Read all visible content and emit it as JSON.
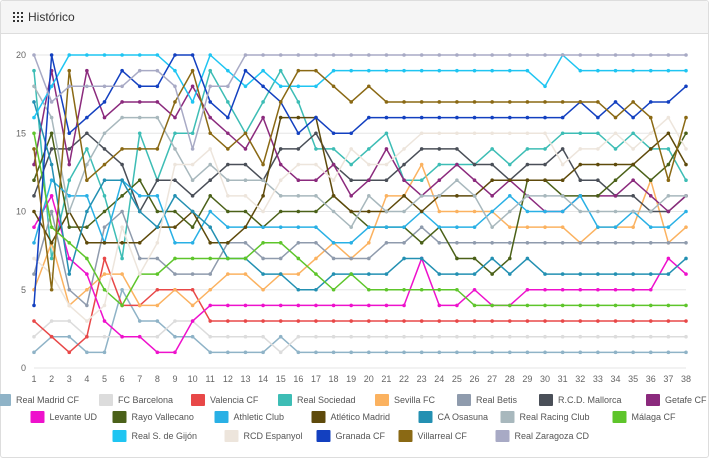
{
  "panel": {
    "title": "Histórico",
    "icon": "grid-icon"
  },
  "chart_data": {
    "type": "line",
    "xlabel": "",
    "ylabel": "",
    "x": [
      1,
      2,
      3,
      4,
      5,
      6,
      7,
      8,
      9,
      10,
      11,
      12,
      13,
      14,
      15,
      16,
      17,
      18,
      19,
      20,
      21,
      22,
      23,
      24,
      25,
      26,
      27,
      28,
      29,
      30,
      31,
      32,
      33,
      34,
      35,
      36,
      37,
      38
    ],
    "ylim": [
      0,
      20
    ],
    "yticks": [
      0,
      5,
      10,
      15,
      20
    ],
    "grid": true,
    "legend_position": "bottom",
    "series": [
      {
        "name": "Real Madrid CF",
        "color": "#8fb3c7",
        "values": [
          1,
          2,
          2,
          1,
          1,
          5,
          3,
          3,
          2,
          2,
          1,
          1,
          1,
          1,
          2,
          1,
          1,
          1,
          1,
          1,
          1,
          1,
          1,
          1,
          1,
          1,
          1,
          1,
          1,
          1,
          1,
          1,
          1,
          1,
          1,
          1,
          1,
          1
        ]
      },
      {
        "name": "FC Barcelona",
        "color": "#dcdcdc",
        "values": [
          2,
          3,
          3,
          2,
          2,
          2,
          2,
          2,
          3,
          3,
          2,
          2,
          2,
          2,
          1,
          2,
          2,
          2,
          2,
          2,
          2,
          2,
          2,
          2,
          2,
          2,
          2,
          2,
          2,
          2,
          2,
          2,
          2,
          2,
          2,
          2,
          2,
          2
        ]
      },
      {
        "name": "Valencia CF",
        "color": "#e84848",
        "values": [
          3,
          2,
          1,
          2,
          7,
          4,
          4,
          5,
          5,
          5,
          3,
          3,
          3,
          3,
          3,
          3,
          3,
          3,
          3,
          3,
          3,
          3,
          3,
          3,
          3,
          3,
          3,
          3,
          3,
          3,
          3,
          3,
          3,
          3,
          3,
          3,
          3,
          3
        ]
      },
      {
        "name": "Real Sociedad",
        "color": "#3dbdb5",
        "values": [
          19,
          7,
          12,
          14,
          11,
          7,
          15,
          12,
          15,
          15,
          19,
          17,
          15,
          17,
          19,
          17,
          14,
          14,
          13,
          14,
          15,
          12,
          12,
          13,
          13,
          13,
          14,
          13,
          14,
          14,
          15,
          15,
          15,
          14,
          15,
          14,
          14,
          12
        ]
      },
      {
        "name": "Sevilla FC",
        "color": "#fbb260",
        "values": [
          5,
          8,
          4,
          5,
          6,
          6,
          4,
          4,
          5,
          4,
          5,
          6,
          6,
          5,
          6,
          6,
          7,
          8,
          7,
          8,
          11,
          11,
          13,
          10,
          10,
          10,
          10,
          9,
          9,
          9,
          9,
          8,
          9,
          9,
          9,
          12,
          8,
          9
        ]
      },
      {
        "name": "Real Betis",
        "color": "#8f9bad",
        "values": [
          6,
          10,
          5,
          4,
          9,
          10,
          7,
          7,
          6,
          6,
          6,
          8,
          8,
          7,
          7,
          8,
          8,
          7,
          7,
          7,
          8,
          8,
          9,
          8,
          8,
          8,
          8,
          8,
          8,
          8,
          8,
          8,
          8,
          8,
          8,
          8,
          8,
          8
        ]
      },
      {
        "name": "R.C.D. Mallorca",
        "color": "#4a4f58",
        "values": [
          11,
          14,
          14,
          15,
          14,
          13,
          10,
          12,
          12,
          11,
          12,
          13,
          13,
          12,
          14,
          14,
          15,
          13,
          12,
          12,
          12,
          13,
          14,
          14,
          14,
          13,
          13,
          12,
          13,
          13,
          14,
          12,
          12,
          11,
          11,
          10,
          10,
          11
        ]
      },
      {
        "name": "Getafe CF",
        "color": "#8b2a7d",
        "values": [
          13,
          19,
          13,
          19,
          16,
          17,
          17,
          17,
          16,
          18,
          16,
          15,
          14,
          16,
          13,
          12,
          12,
          13,
          11,
          12,
          14,
          12,
          11,
          12,
          13,
          12,
          11,
          12,
          11,
          10,
          10,
          11,
          11,
          11,
          12,
          11,
          10,
          11
        ]
      },
      {
        "name": "Levante UD",
        "color": "#ee11cc",
        "values": [
          9,
          11,
          7,
          6,
          3,
          2,
          2,
          1,
          1,
          3,
          4,
          4,
          4,
          4,
          4,
          4,
          4,
          4,
          4,
          4,
          4,
          4,
          7,
          4,
          4,
          5,
          4,
          4,
          5,
          5,
          5,
          5,
          5,
          5,
          5,
          5,
          7,
          6
        ]
      },
      {
        "name": "Rayo Vallecano",
        "color": "#4b6119",
        "values": [
          12,
          15,
          9,
          9,
          10,
          11,
          12,
          10,
          10,
          9,
          11,
          10,
          10,
          9,
          10,
          10,
          10,
          11,
          10,
          9,
          9,
          9,
          8,
          9,
          7,
          7,
          6,
          7,
          12,
          12,
          11,
          11,
          11,
          12,
          13,
          12,
          13,
          15
        ]
      },
      {
        "name": "Athletic Club",
        "color": "#29b0e5",
        "values": [
          8,
          12,
          11,
          11,
          8,
          12,
          11,
          11,
          8,
          8,
          10,
          9,
          9,
          9,
          9,
          9,
          9,
          8,
          8,
          9,
          9,
          9,
          10,
          9,
          9,
          9,
          10,
          11,
          10,
          10,
          10,
          11,
          9,
          9,
          10,
          9,
          9,
          10
        ]
      },
      {
        "name": "Atlético Madrid",
        "color": "#5e4a0b",
        "values": [
          10,
          8,
          10,
          8,
          8,
          8,
          8,
          9,
          9,
          10,
          8,
          8,
          9,
          11,
          16,
          16,
          16,
          11,
          10,
          10,
          10,
          11,
          10,
          11,
          11,
          11,
          12,
          12,
          12,
          12,
          12,
          13,
          13,
          13,
          13,
          14,
          15,
          13
        ]
      },
      {
        "name": "CA Osasuna",
        "color": "#2390b2",
        "values": [
          17,
          13,
          6,
          10,
          12,
          12,
          10,
          9,
          11,
          10,
          9,
          7,
          7,
          6,
          6,
          5,
          5,
          6,
          6,
          6,
          6,
          7,
          7,
          6,
          6,
          6,
          7,
          6,
          7,
          6,
          6,
          6,
          6,
          6,
          6,
          6,
          6,
          7
        ]
      },
      {
        "name": "Real Racing Club",
        "color": "#a8b8bd",
        "values": [
          18,
          16,
          10,
          13,
          15,
          16,
          16,
          16,
          14,
          12,
          13,
          12,
          12,
          12,
          11,
          11,
          11,
          10,
          9,
          11,
          10,
          10,
          11,
          11,
          12,
          11,
          9,
          10,
          11,
          11,
          11,
          10,
          10,
          10,
          10,
          10,
          11,
          11
        ]
      },
      {
        "name": "Málaga CF",
        "color": "#5ec52b",
        "values": [
          15,
          9,
          8,
          7,
          5,
          4,
          6,
          6,
          7,
          7,
          7,
          7,
          7,
          8,
          8,
          7,
          6,
          5,
          6,
          5,
          5,
          5,
          5,
          5,
          5,
          4,
          4,
          4,
          4,
          4,
          4,
          4,
          4,
          4,
          4,
          4,
          4,
          4
        ]
      },
      {
        "name": "Real S. de Gijón",
        "color": "#1fc5f2",
        "values": [
          16,
          18,
          20,
          20,
          20,
          20,
          20,
          20,
          19,
          17,
          20,
          19,
          18,
          19,
          18,
          18,
          18,
          19,
          19,
          19,
          19,
          19,
          19,
          19,
          19,
          19,
          19,
          19,
          19,
          18,
          20,
          19,
          19,
          19,
          19,
          19,
          19,
          19
        ]
      },
      {
        "name": "RCD Espanyol",
        "color": "#ede5dc",
        "values": [
          7,
          6,
          4,
          3,
          4,
          9,
          6,
          8,
          13,
          13,
          14,
          11,
          11,
          10,
          12,
          13,
          13,
          12,
          14,
          13,
          13,
          14,
          15,
          15,
          15,
          15,
          15,
          15,
          15,
          15,
          13,
          14,
          14,
          15,
          14,
          15,
          16,
          14
        ]
      },
      {
        "name": "Granada CF",
        "color": "#1340c0",
        "values": [
          4,
          20,
          15,
          16,
          17,
          19,
          18,
          18,
          20,
          20,
          17,
          16,
          19,
          18,
          17,
          15,
          16,
          15,
          15,
          16,
          16,
          16,
          16,
          16,
          16,
          16,
          16,
          16,
          16,
          16,
          16,
          17,
          16,
          17,
          16,
          17,
          17,
          18
        ]
      },
      {
        "name": "Villarreal CF",
        "color": "#8a6914",
        "values": [
          14,
          5,
          19,
          12,
          13,
          14,
          14,
          14,
          17,
          19,
          15,
          14,
          15,
          13,
          17,
          19,
          19,
          18,
          17,
          18,
          17,
          17,
          17,
          17,
          17,
          17,
          17,
          17,
          17,
          17,
          17,
          17,
          17,
          16,
          17,
          16,
          12,
          16
        ]
      },
      {
        "name": "Real Zaragoza CD",
        "color": "#a8aac5",
        "values": [
          20,
          17,
          18,
          18,
          18,
          18,
          19,
          19,
          18,
          14,
          18,
          18,
          20,
          20,
          20,
          20,
          20,
          20,
          20,
          20,
          20,
          20,
          20,
          20,
          20,
          20,
          20,
          20,
          20,
          20,
          20,
          20,
          20,
          20,
          20,
          20,
          20,
          20
        ]
      }
    ]
  }
}
